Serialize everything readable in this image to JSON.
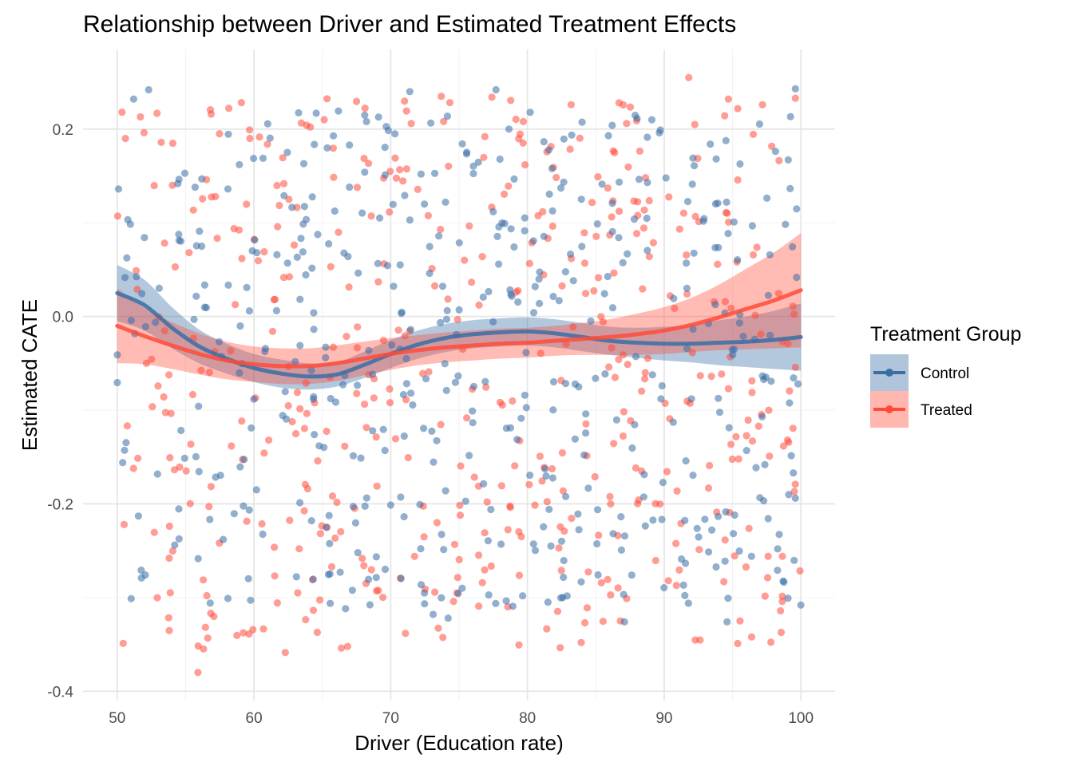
{
  "chart_data": {
    "type": "scatter",
    "title": "Relationship between Driver and Estimated Treatment Effects",
    "xlabel": "Driver (Education rate)",
    "ylabel": "Estimated CATE",
    "xlim": [
      47.5,
      102.5
    ],
    "ylim": [
      -0.41,
      0.285
    ],
    "xticks": [
      50,
      60,
      70,
      80,
      90,
      100
    ],
    "yticks": [
      0.2,
      0.0,
      -0.2,
      -0.4
    ],
    "ytick_labels": [
      "0.2",
      "0.0",
      "-0.2",
      "-0.4"
    ],
    "grid": true,
    "legend": {
      "title": "Treatment Group",
      "position": "right"
    },
    "series": [
      {
        "name": "Control",
        "color": "#3A6EA5",
        "point_count": 500,
        "x_range": [
          50,
          100
        ],
        "y_range": [
          -0.33,
          0.24
        ],
        "points_sample": [
          [
            50.1,
            0.136
          ],
          [
            51.2,
            0.232
          ],
          [
            52.3,
            0.242
          ],
          [
            55.7,
            0.138
          ],
          [
            58.1,
            0.136
          ],
          [
            62.2,
            0.129
          ],
          [
            68.1,
            0.154
          ],
          [
            71.4,
            0.24
          ],
          [
            77.7,
            0.242
          ],
          [
            80.2,
            0.218
          ],
          [
            86.2,
            0.204
          ],
          [
            89.1,
            0.21
          ],
          [
            92.2,
            0.161
          ],
          [
            99.6,
            0.243
          ],
          [
            54.2,
            -0.244
          ],
          [
            56.8,
            -0.306
          ],
          [
            58.1,
            -0.301
          ],
          [
            66.7,
            -0.312
          ],
          [
            73.1,
            -0.318
          ],
          [
            74.2,
            -0.322
          ],
          [
            81.5,
            -0.305
          ],
          [
            87.1,
            -0.326
          ],
          [
            94.6,
            -0.326
          ],
          [
            99.6,
            -0.194
          ]
        ],
        "smooth_x": [
          50,
          52,
          54,
          56,
          58,
          60,
          62,
          64,
          66,
          68,
          70,
          72,
          74,
          76,
          78,
          80,
          82,
          84,
          86,
          88,
          90,
          92,
          94,
          96,
          98,
          100
        ],
        "smooth_y": [
          0.025,
          0.012,
          -0.012,
          -0.032,
          -0.045,
          -0.055,
          -0.061,
          -0.064,
          -0.062,
          -0.052,
          -0.04,
          -0.03,
          -0.023,
          -0.019,
          -0.017,
          -0.016,
          -0.018,
          -0.022,
          -0.026,
          -0.028,
          -0.029,
          -0.029,
          -0.028,
          -0.027,
          -0.025,
          -0.022
        ],
        "band_lower": [
          -0.005,
          -0.015,
          -0.034,
          -0.05,
          -0.061,
          -0.07,
          -0.076,
          -0.078,
          -0.075,
          -0.066,
          -0.055,
          -0.045,
          -0.038,
          -0.034,
          -0.032,
          -0.031,
          -0.033,
          -0.037,
          -0.041,
          -0.044,
          -0.047,
          -0.049,
          -0.052,
          -0.054,
          -0.056,
          -0.058
        ],
        "band_upper": [
          0.055,
          0.039,
          0.01,
          -0.014,
          -0.029,
          -0.04,
          -0.046,
          -0.05,
          -0.049,
          -0.038,
          -0.025,
          -0.015,
          -0.008,
          -0.004,
          -0.002,
          -0.001,
          -0.003,
          -0.007,
          -0.011,
          -0.012,
          -0.011,
          -0.009,
          -0.004,
          0.0,
          0.006,
          0.014
        ]
      },
      {
        "name": "Treated",
        "color": "#FF4B3A",
        "point_count": 500,
        "x_range": [
          50,
          100
        ],
        "y_range": [
          -0.38,
          0.255
        ],
        "points_sample": [
          [
            50.6,
            0.19
          ],
          [
            51.7,
            0.213
          ],
          [
            59.7,
            0.19
          ],
          [
            71.5,
            0.206
          ],
          [
            79.7,
            0.208
          ],
          [
            83.2,
            0.226
          ],
          [
            86.7,
            0.228
          ],
          [
            91.8,
            0.255
          ],
          [
            94.7,
            0.232
          ],
          [
            99.6,
            0.233
          ],
          [
            55.9,
            -0.38
          ],
          [
            53.8,
            -0.258
          ],
          [
            63.2,
            -0.295
          ],
          [
            68.2,
            -0.285
          ],
          [
            84.2,
            -0.327
          ],
          [
            86.8,
            -0.325
          ],
          [
            90.9,
            -0.287
          ],
          [
            97.6,
            -0.256
          ]
        ],
        "smooth_x": [
          50,
          52,
          54,
          56,
          58,
          60,
          62,
          64,
          66,
          68,
          70,
          72,
          74,
          76,
          78,
          80,
          82,
          84,
          86,
          88,
          90,
          92,
          94,
          96,
          98,
          100
        ],
        "smooth_y": [
          -0.01,
          -0.021,
          -0.031,
          -0.04,
          -0.047,
          -0.051,
          -0.053,
          -0.053,
          -0.05,
          -0.045,
          -0.04,
          -0.036,
          -0.033,
          -0.031,
          -0.029,
          -0.028,
          -0.026,
          -0.024,
          -0.022,
          -0.019,
          -0.015,
          -0.009,
          -0.001,
          0.008,
          0.017,
          0.028
        ],
        "band_lower": [
          -0.05,
          -0.051,
          -0.056,
          -0.062,
          -0.067,
          -0.07,
          -0.072,
          -0.072,
          -0.069,
          -0.063,
          -0.057,
          -0.052,
          -0.049,
          -0.047,
          -0.045,
          -0.044,
          -0.042,
          -0.041,
          -0.041,
          -0.041,
          -0.04,
          -0.038,
          -0.036,
          -0.035,
          -0.034,
          -0.033
        ],
        "band_upper": [
          0.03,
          0.009,
          -0.006,
          -0.018,
          -0.027,
          -0.032,
          -0.034,
          -0.034,
          -0.031,
          -0.027,
          -0.023,
          -0.02,
          -0.017,
          -0.015,
          -0.013,
          -0.012,
          -0.01,
          -0.007,
          -0.003,
          0.003,
          0.01,
          0.02,
          0.034,
          0.051,
          0.068,
          0.089
        ]
      }
    ]
  }
}
